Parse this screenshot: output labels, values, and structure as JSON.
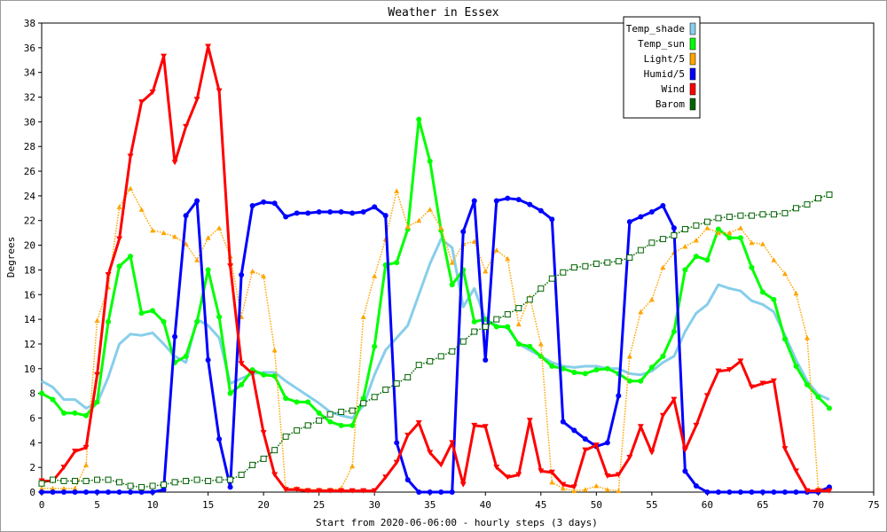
{
  "chart_data": {
    "type": "line",
    "title": "Weather in Essex",
    "xlabel": "Start from 2020-06-06:00 - hourly steps (3 days)",
    "ylabel": "Degrees",
    "xlim": [
      0,
      75
    ],
    "ylim": [
      0,
      38
    ],
    "x_ticks": [
      0,
      5,
      10,
      15,
      20,
      25,
      30,
      35,
      40,
      45,
      50,
      55,
      60,
      65,
      70,
      75
    ],
    "y_ticks": [
      0,
      2,
      4,
      6,
      8,
      10,
      12,
      14,
      16,
      18,
      20,
      22,
      24,
      26,
      28,
      30,
      32,
      34,
      36,
      38
    ],
    "grid": true,
    "legend_position": "top-right",
    "x": [
      0,
      1,
      2,
      3,
      4,
      5,
      6,
      7,
      8,
      9,
      10,
      11,
      12,
      13,
      14,
      15,
      16,
      17,
      18,
      19,
      20,
      21,
      22,
      23,
      24,
      25,
      26,
      27,
      28,
      29,
      30,
      31,
      32,
      33,
      34,
      35,
      36,
      37,
      38,
      39,
      40,
      41,
      42,
      43,
      44,
      45,
      46,
      47,
      48,
      49,
      50,
      51,
      52,
      53,
      54,
      55,
      56,
      57,
      58,
      59,
      60,
      61,
      62,
      63,
      64,
      65,
      66,
      67,
      68,
      69,
      70,
      71
    ],
    "series": [
      {
        "name": "Temp_shade",
        "color": "#87ceeb",
        "marker": "none",
        "style": "solid",
        "width": 3,
        "values": [
          9,
          8.5,
          7.5,
          7.5,
          6.8,
          7.2,
          9.3,
          12,
          12.8,
          12.7,
          12.9,
          12,
          11,
          10.5,
          14,
          13.5,
          12.5,
          8.8,
          9.2,
          9.6,
          9.7,
          9.7,
          9,
          8.4,
          7.8,
          7.2,
          6.5,
          6.2,
          6,
          7,
          9.5,
          11.5,
          12.5,
          13.5,
          16,
          18.5,
          20.5,
          19.8,
          15,
          16.5,
          14,
          13.5,
          13.3,
          12,
          11.5,
          11,
          10.5,
          10.2,
          10.1,
          10.2,
          10.2,
          10,
          10,
          9.6,
          9.5,
          9.8,
          10.5,
          11,
          13,
          14.5,
          15.2,
          16.8,
          16.5,
          16.3,
          15.5,
          15.2,
          14.6,
          12.7,
          10.7,
          9,
          7.9,
          7.5
        ]
      },
      {
        "name": "Temp_sun",
        "color": "#00ff00",
        "marker": "dot",
        "style": "solid",
        "width": 3,
        "values": [
          8,
          7.5,
          6.4,
          6.4,
          6.2,
          7.3,
          13.8,
          18.3,
          19.1,
          14.5,
          14.7,
          13.8,
          10.5,
          11,
          13.8,
          18,
          14.2,
          8,
          8.7,
          9.9,
          9.5,
          9.4,
          7.6,
          7.3,
          7.3,
          6.4,
          5.7,
          5.4,
          5.4,
          7.6,
          11.8,
          18.4,
          18.6,
          21.3,
          30.2,
          26.8,
          21.2,
          16.8,
          18,
          13.8,
          14,
          13.4,
          13.4,
          12,
          11.8,
          11,
          10.2,
          10,
          9.7,
          9.6,
          9.9,
          10,
          9.6,
          9,
          9,
          10.1,
          11,
          13,
          18,
          19.1,
          18.8,
          21.3,
          20.6,
          20.6,
          18.2,
          16.2,
          15.6,
          12.4,
          10.2,
          8.7,
          7.7,
          6.8
        ]
      },
      {
        "name": "Light/5",
        "color": "#ffa500",
        "marker": "triangle-up",
        "style": "dotted",
        "width": 1.5,
        "values": [
          0.3,
          0.3,
          0.3,
          0.3,
          2.2,
          13.9,
          16.6,
          23.1,
          24.6,
          22.9,
          21.2,
          21,
          20.7,
          20.1,
          18.8,
          20.6,
          21.4,
          19.1,
          14.2,
          17.9,
          17.5,
          11.5,
          0.3,
          0.3,
          0.2,
          0.2,
          0.2,
          0.3,
          2.1,
          14.2,
          17.5,
          20.5,
          24.4,
          21.5,
          22,
          22.9,
          21.4,
          18.6,
          20.1,
          20.3,
          17.9,
          19.6,
          18.9,
          13.6,
          15.8,
          12,
          0.8,
          0.3,
          0.1,
          0.2,
          0.5,
          0.2,
          0.1,
          11,
          14.6,
          15.6,
          18.2,
          19.4,
          19.9,
          20.4,
          21.4,
          21,
          21,
          21.4,
          20.2,
          20.1,
          18.8,
          17.7,
          16.1,
          12.5,
          0.3,
          0.3
        ]
      },
      {
        "name": "Humid/5",
        "color": "#0000ff",
        "marker": "dot",
        "style": "solid",
        "width": 3,
        "values": [
          0,
          0,
          0,
          0,
          0,
          0,
          0,
          0,
          0,
          0,
          0,
          0.2,
          12.6,
          22.4,
          23.6,
          10.7,
          4.3,
          0.4,
          17.6,
          23.2,
          23.5,
          23.4,
          22.3,
          22.6,
          22.6,
          22.7,
          22.7,
          22.7,
          22.6,
          22.7,
          23.1,
          22.4,
          4,
          1,
          0,
          0,
          0,
          0,
          21.1,
          23.6,
          10.7,
          23.6,
          23.8,
          23.7,
          23.3,
          22.8,
          22.1,
          5.7,
          5,
          4.3,
          3.7,
          4,
          7.8,
          21.9,
          22.3,
          22.7,
          23.2,
          21.4,
          1.7,
          0.5,
          0,
          0,
          0,
          0,
          0,
          0,
          0,
          0,
          0,
          0,
          0,
          0.4
        ]
      },
      {
        "name": "Wind",
        "color": "#ff0000",
        "marker": "triangle-down",
        "style": "solid",
        "width": 3,
        "values": [
          0.9,
          0.9,
          2,
          3.3,
          3.6,
          9.5,
          17.6,
          20.5,
          27.2,
          31.6,
          32.4,
          35.3,
          26.7,
          29.6,
          31.8,
          36.1,
          32.5,
          18.3,
          10.4,
          9.6,
          4.8,
          1.4,
          0.2,
          0.2,
          0.1,
          0.1,
          0.1,
          0.1,
          0.1,
          0.1,
          0.1,
          1.2,
          2.4,
          4.6,
          5.6,
          3.2,
          2.2,
          4,
          0.6,
          5.4,
          5.3,
          2,
          1.2,
          1.4,
          5.8,
          1.7,
          1.6,
          0.6,
          0.4,
          3.4,
          3.8,
          1.3,
          1.4,
          2.8,
          5.3,
          3.2,
          6.2,
          7.5,
          3.4,
          5.4,
          7.8,
          9.8,
          9.9,
          10.6,
          8.5,
          8.8,
          9,
          3.5,
          1.7,
          0.1,
          0.1,
          0.1
        ]
      },
      {
        "name": "Barom",
        "color": "#006400",
        "marker": "square-hollow",
        "style": "dotted",
        "width": 1.5,
        "values": [
          0.7,
          1,
          0.9,
          0.9,
          0.9,
          1,
          1,
          0.8,
          0.5,
          0.4,
          0.5,
          0.6,
          0.8,
          0.9,
          1,
          0.9,
          1,
          1,
          1.4,
          2.2,
          2.7,
          3.4,
          4.5,
          5,
          5.4,
          5.8,
          6.3,
          6.5,
          6.6,
          7.2,
          7.7,
          8.3,
          8.8,
          9.3,
          10.3,
          10.6,
          11,
          11.4,
          12.2,
          13,
          13.4,
          14,
          14.4,
          14.9,
          15.6,
          16.5,
          17.3,
          17.8,
          18.2,
          18.3,
          18.5,
          18.6,
          18.7,
          19,
          19.6,
          20.2,
          20.5,
          20.8,
          21.3,
          21.6,
          21.9,
          22.2,
          22.3,
          22.4,
          22.4,
          22.5,
          22.5,
          22.6,
          23,
          23.3,
          23.8,
          24.1
        ]
      }
    ]
  }
}
